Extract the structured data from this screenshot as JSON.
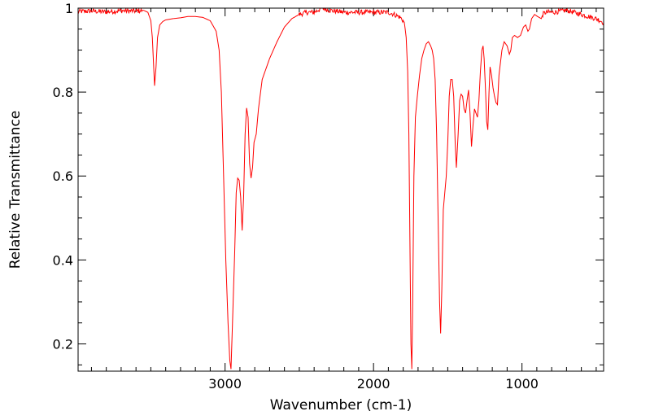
{
  "chart_data": {
    "type": "line",
    "title": "",
    "xlabel": "Wavenumber (cm-1)",
    "ylabel": "Relative Transmittance",
    "x_reversed": true,
    "xlim": [
      3990,
      450
    ],
    "ylim": [
      0.135,
      1.0
    ],
    "x_ticks": [
      3000,
      2000,
      1000
    ],
    "y_ticks": [
      0.2,
      0.4,
      0.6,
      0.8,
      1.0
    ],
    "x_tick_labels": [
      "3000",
      "2000",
      "1000"
    ],
    "y_tick_labels": [
      "0.2",
      "0.4",
      "0.6",
      "0.8",
      "1"
    ],
    "grid": false,
    "legend": "none",
    "series": [
      {
        "color": "#ff0000",
        "noisy_regions": [
          [
            3990,
            3560
          ],
          [
            2500,
            1790
          ],
          [
            860,
            450
          ]
        ],
        "points": [
          [
            3990,
            0.992
          ],
          [
            3900,
            0.993
          ],
          [
            3800,
            0.991
          ],
          [
            3700,
            0.994
          ],
          [
            3600,
            0.993
          ],
          [
            3550,
            0.995
          ],
          [
            3520,
            0.99
          ],
          [
            3500,
            0.97
          ],
          [
            3490,
            0.93
          ],
          [
            3475,
            0.815
          ],
          [
            3465,
            0.86
          ],
          [
            3455,
            0.93
          ],
          [
            3440,
            0.96
          ],
          [
            3420,
            0.968
          ],
          [
            3400,
            0.972
          ],
          [
            3350,
            0.975
          ],
          [
            3300,
            0.977
          ],
          [
            3250,
            0.98
          ],
          [
            3200,
            0.98
          ],
          [
            3150,
            0.978
          ],
          [
            3100,
            0.97
          ],
          [
            3060,
            0.945
          ],
          [
            3040,
            0.9
          ],
          [
            3025,
            0.8
          ],
          [
            3010,
            0.6
          ],
          [
            2995,
            0.4
          ],
          [
            2980,
            0.25
          ],
          [
            2968,
            0.16
          ],
          [
            2960,
            0.14
          ],
          [
            2950,
            0.25
          ],
          [
            2935,
            0.42
          ],
          [
            2925,
            0.56
          ],
          [
            2915,
            0.595
          ],
          [
            2905,
            0.59
          ],
          [
            2895,
            0.55
          ],
          [
            2885,
            0.47
          ],
          [
            2875,
            0.55
          ],
          [
            2865,
            0.7
          ],
          [
            2855,
            0.762
          ],
          [
            2845,
            0.74
          ],
          [
            2835,
            0.63
          ],
          [
            2825,
            0.595
          ],
          [
            2815,
            0.62
          ],
          [
            2805,
            0.68
          ],
          [
            2790,
            0.7
          ],
          [
            2775,
            0.76
          ],
          [
            2750,
            0.83
          ],
          [
            2700,
            0.88
          ],
          [
            2650,
            0.92
          ],
          [
            2600,
            0.955
          ],
          [
            2550,
            0.975
          ],
          [
            2500,
            0.985
          ],
          [
            2450,
            0.99
          ],
          [
            2400,
            0.99
          ],
          [
            2350,
            1.0
          ],
          [
            2300,
            0.995
          ],
          [
            2200,
            0.99
          ],
          [
            2100,
            0.99
          ],
          [
            2000,
            0.99
          ],
          [
            1900,
            0.99
          ],
          [
            1860,
            0.985
          ],
          [
            1820,
            0.978
          ],
          [
            1800,
            0.97
          ],
          [
            1790,
            0.96
          ],
          [
            1780,
            0.93
          ],
          [
            1770,
            0.85
          ],
          [
            1762,
            0.7
          ],
          [
            1755,
            0.45
          ],
          [
            1748,
            0.2
          ],
          [
            1742,
            0.14
          ],
          [
            1736,
            0.3
          ],
          [
            1728,
            0.6
          ],
          [
            1718,
            0.74
          ],
          [
            1705,
            0.79
          ],
          [
            1690,
            0.84
          ],
          [
            1675,
            0.88
          ],
          [
            1660,
            0.9
          ],
          [
            1645,
            0.915
          ],
          [
            1630,
            0.92
          ],
          [
            1615,
            0.91
          ],
          [
            1605,
            0.9
          ],
          [
            1595,
            0.88
          ],
          [
            1585,
            0.83
          ],
          [
            1575,
            0.7
          ],
          [
            1565,
            0.5
          ],
          [
            1555,
            0.3
          ],
          [
            1548,
            0.225
          ],
          [
            1540,
            0.33
          ],
          [
            1530,
            0.52
          ],
          [
            1520,
            0.56
          ],
          [
            1510,
            0.6
          ],
          [
            1500,
            0.68
          ],
          [
            1490,
            0.79
          ],
          [
            1480,
            0.83
          ],
          [
            1470,
            0.83
          ],
          [
            1460,
            0.79
          ],
          [
            1450,
            0.68
          ],
          [
            1442,
            0.62
          ],
          [
            1430,
            0.7
          ],
          [
            1420,
            0.78
          ],
          [
            1410,
            0.795
          ],
          [
            1400,
            0.79
          ],
          [
            1390,
            0.76
          ],
          [
            1380,
            0.75
          ],
          [
            1370,
            0.78
          ],
          [
            1360,
            0.805
          ],
          [
            1350,
            0.75
          ],
          [
            1340,
            0.67
          ],
          [
            1330,
            0.72
          ],
          [
            1320,
            0.76
          ],
          [
            1310,
            0.75
          ],
          [
            1300,
            0.74
          ],
          [
            1290,
            0.78
          ],
          [
            1280,
            0.85
          ],
          [
            1270,
            0.9
          ],
          [
            1262,
            0.91
          ],
          [
            1255,
            0.88
          ],
          [
            1245,
            0.8
          ],
          [
            1238,
            0.73
          ],
          [
            1230,
            0.71
          ],
          [
            1222,
            0.8
          ],
          [
            1215,
            0.86
          ],
          [
            1205,
            0.84
          ],
          [
            1195,
            0.81
          ],
          [
            1185,
            0.79
          ],
          [
            1175,
            0.775
          ],
          [
            1165,
            0.77
          ],
          [
            1155,
            0.84
          ],
          [
            1145,
            0.87
          ],
          [
            1135,
            0.9
          ],
          [
            1120,
            0.92
          ],
          [
            1100,
            0.91
          ],
          [
            1085,
            0.89
          ],
          [
            1075,
            0.9
          ],
          [
            1065,
            0.93
          ],
          [
            1050,
            0.935
          ],
          [
            1030,
            0.93
          ],
          [
            1010,
            0.935
          ],
          [
            990,
            0.955
          ],
          [
            975,
            0.96
          ],
          [
            960,
            0.945
          ],
          [
            950,
            0.95
          ],
          [
            935,
            0.975
          ],
          [
            915,
            0.985
          ],
          [
            895,
            0.98
          ],
          [
            870,
            0.975
          ],
          [
            860,
            0.985
          ],
          [
            840,
            0.99
          ],
          [
            800,
            0.99
          ],
          [
            750,
            0.992
          ],
          [
            700,
            0.995
          ],
          [
            650,
            0.99
          ],
          [
            600,
            0.985
          ],
          [
            550,
            0.98
          ],
          [
            500,
            0.975
          ],
          [
            470,
            0.97
          ],
          [
            450,
            0.965
          ]
        ]
      }
    ]
  }
}
